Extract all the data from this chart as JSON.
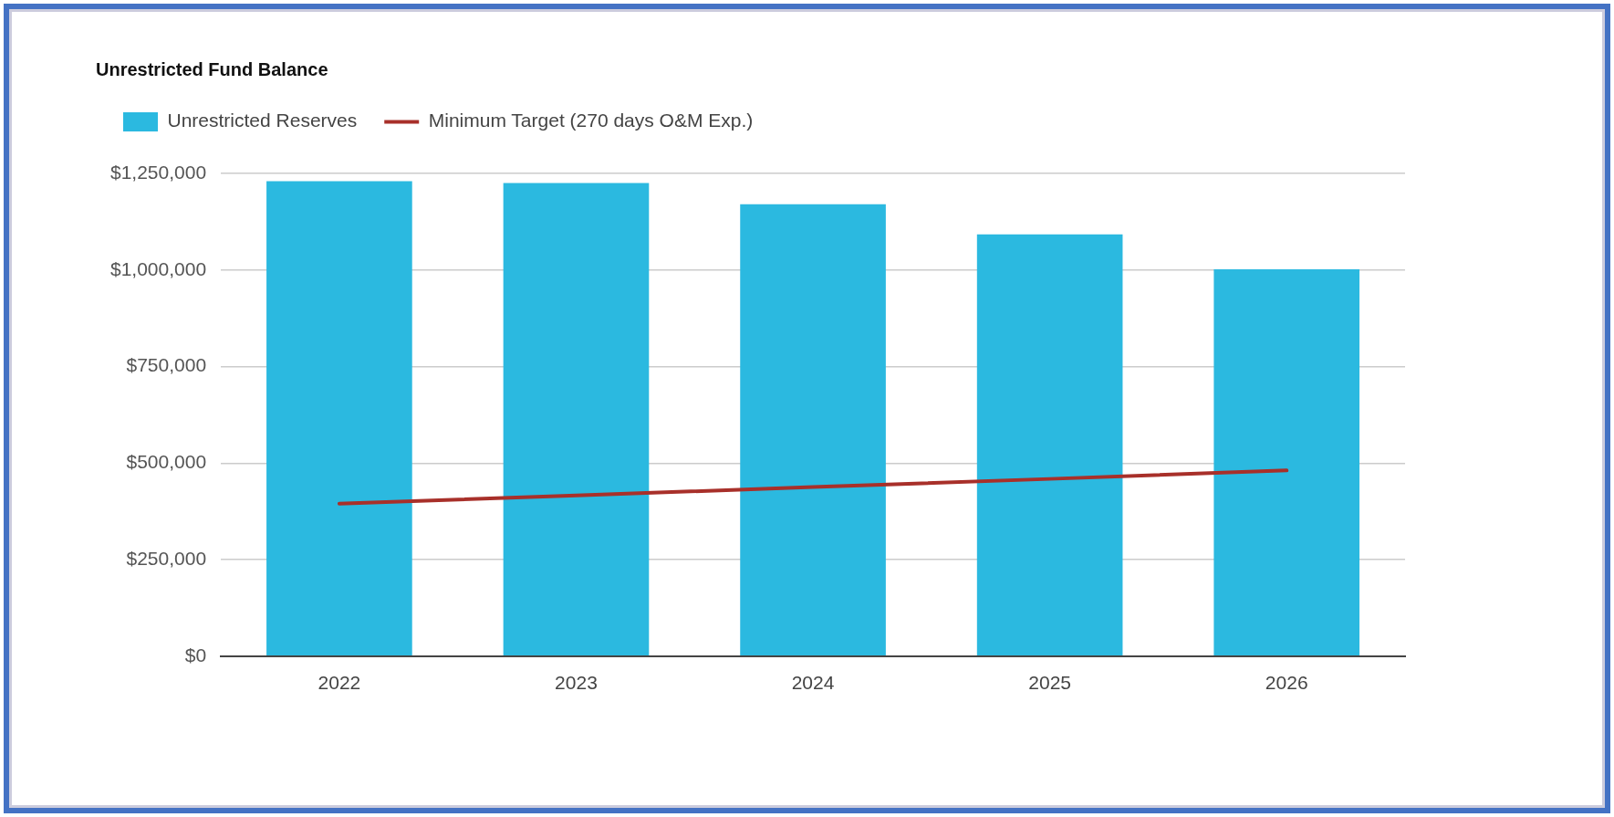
{
  "chart_data": {
    "type": "bar",
    "title": "Unrestricted Fund Balance",
    "categories": [
      "2022",
      "2023",
      "2024",
      "2025",
      "2026"
    ],
    "series": [
      {
        "name": "Unrestricted Reserves",
        "color": "#2bb9e0",
        "values": [
          1230000,
          1225000,
          1170000,
          1092000,
          1002000
        ]
      },
      {
        "name": "Minimum Target (270 days O&M Exp.)",
        "type": "line",
        "color": "#a8302a",
        "values": [
          395000,
          416000,
          438000,
          459000,
          481000
        ]
      }
    ],
    "ylim": [
      0,
      1250000
    ],
    "yticks": [
      {
        "value": 0,
        "label": "$0"
      },
      {
        "value": 250000,
        "label": "$250,000"
      },
      {
        "value": 500000,
        "label": "$500,000"
      },
      {
        "value": 750000,
        "label": "$750,000"
      },
      {
        "value": 1000000,
        "label": "$1,000,000"
      },
      {
        "value": 1250000,
        "label": "$1,250,000"
      }
    ],
    "grid": "y",
    "legend": "top left",
    "marker": "none"
  }
}
